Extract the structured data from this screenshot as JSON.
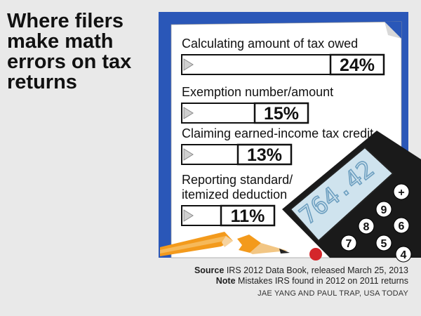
{
  "title": "Where filers make math errors on tax returns",
  "chart_data": {
    "type": "bar",
    "orientation": "horizontal",
    "categories": [
      "Calculating amount of tax owed",
      "Exemption number/amount",
      "Claiming earned-income tax credit",
      "Reporting standard/ itemized deduction"
    ],
    "category_lines": [
      [
        "Calculating amount of tax owed"
      ],
      [
        "Exemption number/amount"
      ],
      [
        "Claiming earned-income tax credit"
      ],
      [
        "Reporting standard/",
        "itemized deduction"
      ]
    ],
    "values": [
      24,
      15,
      13,
      11
    ],
    "value_labels": [
      "24%",
      "15%",
      "13%",
      "11%"
    ],
    "unit": "%"
  },
  "calculator_display": "764.42",
  "calculator_keys": [
    "+",
    "9",
    "8",
    "7",
    "6",
    "5",
    "4"
  ],
  "source": {
    "label": "Source",
    "text": "IRS 2012 Data Book, released March 25, 2013"
  },
  "note": {
    "label": "Note",
    "text": "Mistakes IRS found in 2012 on 2011 returns"
  },
  "credit": "JAE YANG AND PAUL TRAP, USA TODAY",
  "colors": {
    "background": "#e9e9e9",
    "folder_blue": "#2a57b8",
    "paper": "#ffffff",
    "ink": "#111111",
    "calculator": "#1a1a1a",
    "lcd": "#cfe3ee",
    "lcd_text": "#6d9fc0",
    "pencil": "#f39a1c",
    "pencil_wood": "#f2c684",
    "key_red": "#d4262b"
  }
}
